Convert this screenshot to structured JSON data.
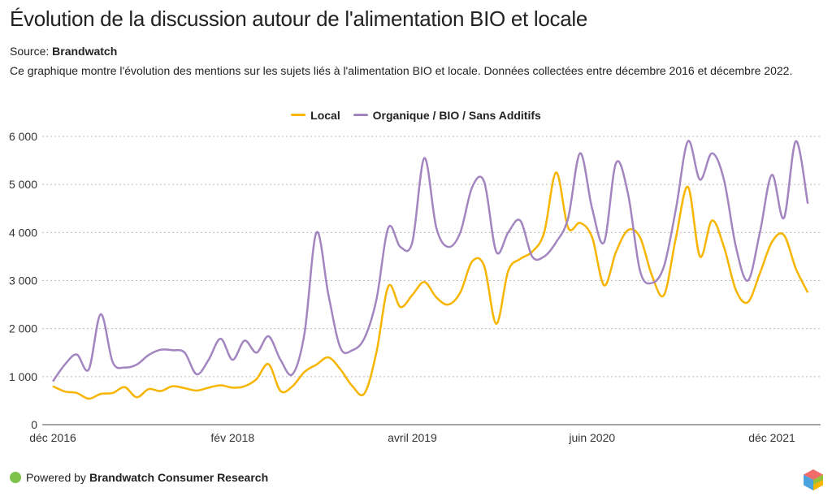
{
  "title": "Évolution de la discussion autour de l'alimentation BIO et locale",
  "source_label": "Source:",
  "source_name": "Brandwatch",
  "description": "Ce graphique montre l'évolution des mentions sur les sujets liés à l'alimentation BIO et locale. Données collectées entre décembre 2016 et décembre 2022.",
  "footer": {
    "prefix": "Powered by",
    "brand": "Brandwatch Consumer Research"
  },
  "chart_data": {
    "type": "line",
    "title": "Évolution de la discussion autour de l'alimentation BIO et locale",
    "xlabel": "",
    "ylabel": "",
    "ylim": [
      0,
      6000
    ],
    "yticks": [
      0,
      1000,
      2000,
      3000,
      4000,
      5000,
      6000
    ],
    "ytick_labels": [
      "0",
      "1 000",
      "2 000",
      "3 000",
      "4 000",
      "5 000",
      "6 000"
    ],
    "xtick_labels": [
      {
        "index": 0,
        "label": "déc 2016"
      },
      {
        "index": 15,
        "label": "fév 2018"
      },
      {
        "index": 30,
        "label": "avril 2019"
      },
      {
        "index": 45,
        "label": "juin 2020"
      },
      {
        "index": 60,
        "label": "déc 2021"
      }
    ],
    "grid": true,
    "legend_position": "top-center",
    "series": [
      {
        "name": "Local",
        "color": "#f7b500",
        "values": [
          800,
          690,
          660,
          540,
          640,
          660,
          780,
          570,
          740,
          700,
          800,
          760,
          710,
          770,
          820,
          770,
          800,
          950,
          1260,
          700,
          800,
          1100,
          1250,
          1400,
          1150,
          800,
          650,
          1500,
          2880,
          2450,
          2700,
          2970,
          2650,
          2500,
          2750,
          3400,
          3300,
          2100,
          3200,
          3450,
          3600,
          4000,
          5250,
          4100,
          4200,
          3900,
          2900,
          3600,
          4050,
          3900,
          3100,
          2700,
          3900,
          4950,
          3500,
          4250,
          3700,
          2800,
          2550,
          3150,
          3800,
          3950,
          3250,
          2750
        ]
      },
      {
        "name": "Organique / BIO / Sans Additifs",
        "color": "#a385c0",
        "values": [
          900,
          1250,
          1460,
          1150,
          2300,
          1300,
          1190,
          1250,
          1450,
          1560,
          1550,
          1500,
          1050,
          1350,
          1790,
          1350,
          1750,
          1500,
          1840,
          1350,
          1050,
          1900,
          4000,
          2700,
          1600,
          1550,
          1800,
          2600,
          4100,
          3700,
          3800,
          5550,
          4100,
          3700,
          4000,
          4950,
          5050,
          3600,
          4000,
          4250,
          3500,
          3500,
          3800,
          4300,
          5650,
          4500,
          3800,
          5450,
          4800,
          3200,
          2950,
          3300,
          4500,
          5900,
          5100,
          5650,
          5100,
          3700,
          3000,
          4000,
          5200,
          4300,
          5900,
          4600
        ]
      }
    ]
  }
}
